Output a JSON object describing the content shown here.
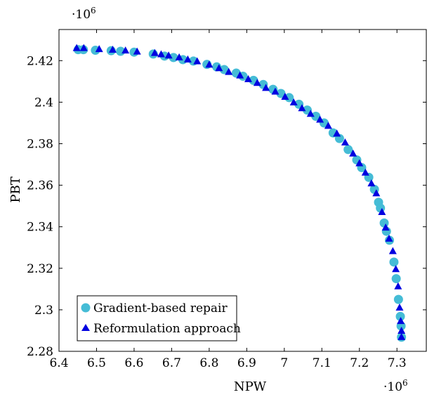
{
  "chart_data": {
    "type": "scatter",
    "xlabel": "NPW",
    "ylabel": "PBT",
    "x_scale_label": "·10",
    "x_scale_exponent": "6",
    "y_scale_label": "·10",
    "y_scale_exponent": "6",
    "xlim": [
      6.4,
      7.38
    ],
    "ylim": [
      2.28,
      2.435
    ],
    "x_ticks": [
      {
        "value": 6.4,
        "label": "6.4"
      },
      {
        "value": 6.5,
        "label": "6.5"
      },
      {
        "value": 6.6,
        "label": "6.6"
      },
      {
        "value": 6.7,
        "label": "6.7"
      },
      {
        "value": 6.8,
        "label": "6.8"
      },
      {
        "value": 6.9,
        "label": "6.9"
      },
      {
        "value": 7.0,
        "label": "7"
      },
      {
        "value": 7.1,
        "label": "7.1"
      },
      {
        "value": 7.2,
        "label": "7.2"
      },
      {
        "value": 7.3,
        "label": "7.3"
      }
    ],
    "y_ticks": [
      {
        "value": 2.28,
        "label": "2.28"
      },
      {
        "value": 2.3,
        "label": "2.3"
      },
      {
        "value": 2.32,
        "label": "2.32"
      },
      {
        "value": 2.34,
        "label": "2.34"
      },
      {
        "value": 2.36,
        "label": "2.36"
      },
      {
        "value": 2.38,
        "label": "2.38"
      },
      {
        "value": 2.4,
        "label": "2.4"
      },
      {
        "value": 2.42,
        "label": "2.42"
      }
    ],
    "grid": false,
    "legend_position": "bottom-left",
    "series": [
      {
        "name": "Gradient-based repair",
        "marker": "circle",
        "color": "#45bcd6",
        "x": [
          6.451,
          6.465,
          6.497,
          6.539,
          6.564,
          6.6,
          6.651,
          6.681,
          6.705,
          6.73,
          6.758,
          6.794,
          6.82,
          6.84,
          6.872,
          6.89,
          6.918,
          6.944,
          6.97,
          6.991,
          7.013,
          7.039,
          7.061,
          7.084,
          7.106,
          7.13,
          7.147,
          7.17,
          7.193,
          7.206,
          7.225,
          7.24,
          7.251,
          7.256,
          7.266,
          7.272,
          7.28,
          7.292,
          7.298,
          7.304,
          7.309,
          7.311,
          7.312
        ],
        "y": [
          2.4253,
          2.4253,
          2.425,
          2.4248,
          2.4245,
          2.4241,
          2.4232,
          2.4222,
          2.4215,
          2.4205,
          2.4198,
          2.4182,
          2.417,
          2.4157,
          2.414,
          2.4125,
          2.4105,
          2.4085,
          2.4062,
          2.4042,
          2.4022,
          2.399,
          2.3962,
          2.3932,
          2.39,
          2.3852,
          2.3825,
          2.3772,
          2.3722,
          2.3685,
          2.3638,
          2.358,
          2.3518,
          2.349,
          2.3418,
          2.3378,
          2.3335,
          2.323,
          2.315,
          2.305,
          2.2968,
          2.2922,
          2.2868
        ]
      },
      {
        "name": "Reformulation approach",
        "marker": "triangle",
        "color": "#0000e0",
        "x": [
          6.447,
          6.466,
          6.507,
          6.543,
          6.577,
          6.608,
          6.655,
          6.672,
          6.692,
          6.72,
          6.743,
          6.768,
          6.8,
          6.826,
          6.852,
          6.882,
          6.904,
          6.928,
          6.951,
          6.976,
          7.002,
          7.025,
          7.047,
          7.07,
          7.095,
          7.117,
          7.14,
          7.162,
          7.183,
          7.2,
          7.216,
          7.232,
          7.245,
          7.26,
          7.27,
          7.279,
          7.289,
          7.297,
          7.303,
          7.307,
          7.31,
          7.312,
          7.312
        ],
        "y": [
          2.426,
          2.426,
          2.4255,
          2.4252,
          2.4248,
          2.4243,
          2.4236,
          2.423,
          2.4224,
          2.4215,
          2.4205,
          2.4196,
          2.418,
          2.4163,
          2.4145,
          2.4128,
          2.411,
          2.4092,
          2.4068,
          2.405,
          2.4025,
          2.3998,
          2.397,
          2.3943,
          2.3915,
          2.3885,
          2.3848,
          2.3805,
          2.3752,
          2.3705,
          2.366,
          2.3608,
          2.356,
          2.347,
          2.3395,
          2.3342,
          2.3282,
          2.3195,
          2.3112,
          2.301,
          2.2945,
          2.2898,
          2.2868
        ]
      }
    ]
  }
}
